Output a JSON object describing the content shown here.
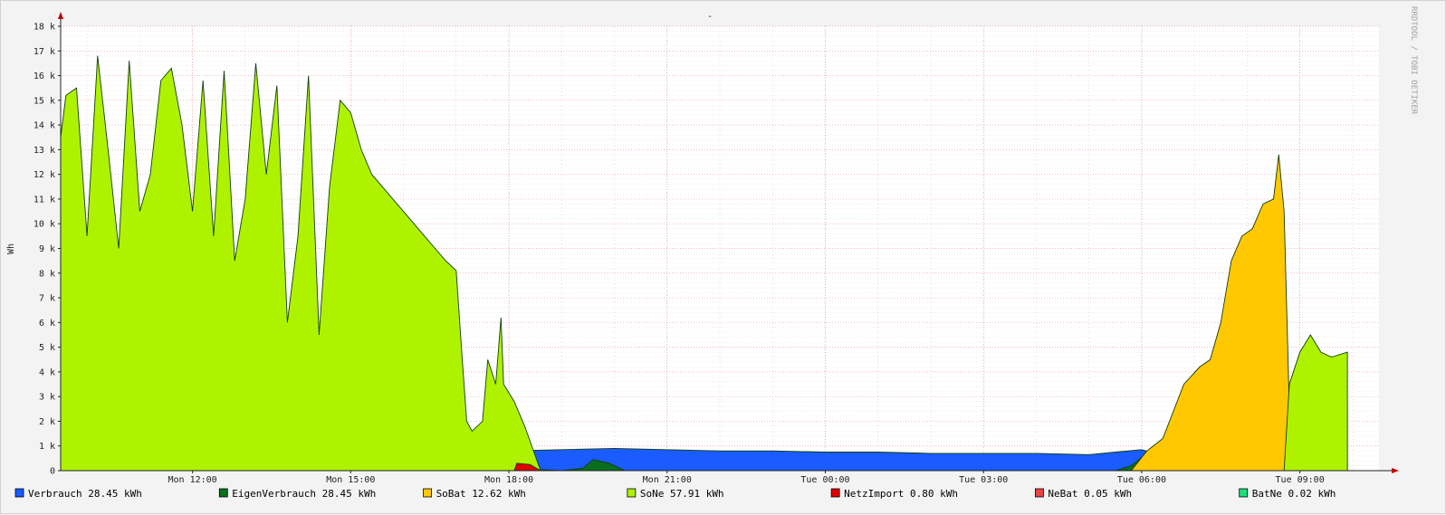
{
  "chart_data": {
    "type": "area",
    "title": "-",
    "ylabel": "Wh",
    "side_text": "RRDTOOL / TOBI OETIKER",
    "ylim": [
      0,
      18000
    ],
    "y_ticks": [
      {
        "value": 0,
        "label": "0"
      },
      {
        "value": 1000,
        "label": "1 k"
      },
      {
        "value": 2000,
        "label": "2 k"
      },
      {
        "value": 3000,
        "label": "3 k"
      },
      {
        "value": 4000,
        "label": "4 k"
      },
      {
        "value": 5000,
        "label": "5 k"
      },
      {
        "value": 6000,
        "label": "6 k"
      },
      {
        "value": 7000,
        "label": "7 k"
      },
      {
        "value": 8000,
        "label": "8 k"
      },
      {
        "value": 9000,
        "label": "9 k"
      },
      {
        "value": 10000,
        "label": "10 k"
      },
      {
        "value": 11000,
        "label": "11 k"
      },
      {
        "value": 12000,
        "label": "12 k"
      },
      {
        "value": 13000,
        "label": "13 k"
      },
      {
        "value": 14000,
        "label": "14 k"
      },
      {
        "value": 15000,
        "label": "15 k"
      },
      {
        "value": 16000,
        "label": "16 k"
      },
      {
        "value": 17000,
        "label": "17 k"
      },
      {
        "value": 18000,
        "label": "18 k"
      }
    ],
    "xlim": [
      9.5,
      34.5
    ],
    "x_ticks": [
      {
        "value": 12,
        "label": "Mon 12:00"
      },
      {
        "value": 15,
        "label": "Mon 15:00"
      },
      {
        "value": 18,
        "label": "Mon 18:00"
      },
      {
        "value": 21,
        "label": "Mon 21:00"
      },
      {
        "value": 24,
        "label": "Tue 00:00"
      },
      {
        "value": 27,
        "label": "Tue 03:00"
      },
      {
        "value": 30,
        "label": "Tue 06:00"
      },
      {
        "value": 33,
        "label": "Tue 09:00"
      }
    ],
    "grid": true,
    "legend_position": "bottom",
    "legend": [
      {
        "label": "Verbrauch 28.45 kWh",
        "color": "#1a5cff"
      },
      {
        "label": "EigenVerbrauch 28.45 kWh",
        "color": "#0a6e1e"
      },
      {
        "label": "SoBat 12.62 kWh",
        "color": "#ffc800"
      },
      {
        "label": "SoNe 57.91 kWh",
        "color": "#aef200"
      },
      {
        "label": "NetzImport 0.80 kWh",
        "color": "#e00000"
      },
      {
        "label": "NeBat 0.05 kWh",
        "color": "#e84545"
      },
      {
        "label": "BatNe 0.02 kWh",
        "color": "#19e07a"
      }
    ],
    "series": [
      {
        "name": "Verbrauch",
        "color": "#1a5cff",
        "points": [
          [
            17.6,
            0
          ],
          [
            17.65,
            700
          ],
          [
            18,
            800
          ],
          [
            19,
            850
          ],
          [
            20,
            900
          ],
          [
            21,
            850
          ],
          [
            22,
            800
          ],
          [
            23,
            800
          ],
          [
            24,
            750
          ],
          [
            25,
            750
          ],
          [
            26,
            700
          ],
          [
            27,
            700
          ],
          [
            28,
            700
          ],
          [
            29,
            650
          ],
          [
            29.5,
            750
          ],
          [
            30,
            850
          ],
          [
            30.25,
            700
          ]
        ]
      },
      {
        "name": "EigenVerbrauch",
        "color": "#0a6e1e",
        "points": [
          [
            9.5,
            0
          ],
          [
            9.5,
            1200
          ],
          [
            9.8,
            1700
          ],
          [
            10.2,
            1400
          ],
          [
            10.5,
            1300
          ],
          [
            11,
            1500
          ],
          [
            11.5,
            1800
          ],
          [
            12,
            1100
          ],
          [
            12.5,
            1300
          ],
          [
            13,
            1400
          ],
          [
            13.5,
            1100
          ],
          [
            14,
            900
          ],
          [
            14.5,
            1300
          ],
          [
            15,
            1800
          ],
          [
            15.5,
            1900
          ],
          [
            16,
            1800
          ],
          [
            16.5,
            1500
          ],
          [
            17,
            1200
          ],
          [
            17.3,
            1000
          ],
          [
            17.6,
            800
          ],
          [
            18,
            200
          ],
          [
            18.5,
            50
          ],
          [
            19,
            0
          ],
          [
            19.4,
            100
          ],
          [
            19.6,
            450
          ],
          [
            19.9,
            300
          ],
          [
            20.2,
            0
          ],
          [
            29.5,
            0
          ],
          [
            29.8,
            200
          ],
          [
            30.1,
            700
          ],
          [
            30.5,
            1200
          ],
          [
            30.8,
            1100
          ],
          [
            31.2,
            1300
          ],
          [
            31.8,
            1400
          ],
          [
            32.3,
            1600
          ],
          [
            32.8,
            2000
          ],
          [
            33.2,
            2200
          ],
          [
            33.6,
            2700
          ],
          [
            33.9,
            2800
          ],
          [
            33.9,
            0
          ]
        ]
      },
      {
        "name": "SoBat",
        "color": "#ffc800",
        "points": [
          [
            17.6,
            0
          ],
          [
            17.6,
            600
          ],
          [
            17.8,
            200
          ],
          [
            18,
            0
          ],
          [
            29.8,
            0
          ],
          [
            30.1,
            800
          ],
          [
            30.4,
            1300
          ],
          [
            30.8,
            3500
          ],
          [
            31.1,
            4200
          ],
          [
            31.3,
            4500
          ],
          [
            31.5,
            6000
          ],
          [
            31.7,
            8500
          ],
          [
            31.9,
            9500
          ],
          [
            32.1,
            9800
          ],
          [
            32.3,
            10800
          ],
          [
            32.5,
            11000
          ],
          [
            32.6,
            12800
          ],
          [
            32.7,
            10500
          ],
          [
            32.8,
            2500
          ],
          [
            33.2,
            1500
          ],
          [
            33.9,
            0
          ]
        ]
      },
      {
        "name": "SoNe",
        "color": "#aef200",
        "points": [
          [
            9.5,
            0
          ],
          [
            9.5,
            13500
          ],
          [
            9.6,
            15200
          ],
          [
            9.8,
            15500
          ],
          [
            10,
            9500
          ],
          [
            10.2,
            16800
          ],
          [
            10.4,
            13000
          ],
          [
            10.6,
            9000
          ],
          [
            10.8,
            16600
          ],
          [
            11,
            10500
          ],
          [
            11.2,
            12000
          ],
          [
            11.4,
            15800
          ],
          [
            11.6,
            16300
          ],
          [
            11.8,
            14000
          ],
          [
            12,
            10500
          ],
          [
            12.2,
            15800
          ],
          [
            12.4,
            9500
          ],
          [
            12.6,
            16200
          ],
          [
            12.8,
            8500
          ],
          [
            13,
            11000
          ],
          [
            13.2,
            16500
          ],
          [
            13.4,
            12000
          ],
          [
            13.6,
            15600
          ],
          [
            13.8,
            6000
          ],
          [
            14,
            9500
          ],
          [
            14.2,
            16000
          ],
          [
            14.4,
            5500
          ],
          [
            14.6,
            11500
          ],
          [
            14.8,
            15000
          ],
          [
            15,
            14500
          ],
          [
            15.2,
            13000
          ],
          [
            15.4,
            12000
          ],
          [
            15.6,
            11500
          ],
          [
            15.8,
            11000
          ],
          [
            16,
            10500
          ],
          [
            16.2,
            10000
          ],
          [
            16.4,
            9500
          ],
          [
            16.6,
            9000
          ],
          [
            16.8,
            8500
          ],
          [
            17,
            8100
          ],
          [
            17.1,
            5000
          ],
          [
            17.2,
            2000
          ],
          [
            17.3,
            1600
          ],
          [
            17.5,
            2000
          ],
          [
            17.6,
            4500
          ],
          [
            17.75,
            3500
          ],
          [
            17.85,
            6200
          ],
          [
            17.9,
            3500
          ],
          [
            18.1,
            2800
          ],
          [
            18.3,
            1800
          ],
          [
            18.5,
            600
          ],
          [
            18.6,
            0
          ],
          [
            32.7,
            0
          ],
          [
            32.8,
            3500
          ],
          [
            33,
            4800
          ],
          [
            33.2,
            5500
          ],
          [
            33.4,
            4800
          ],
          [
            33.6,
            4600
          ],
          [
            33.9,
            4800
          ],
          [
            33.9,
            0
          ]
        ]
      },
      {
        "name": "NetzImport",
        "color": "#e00000",
        "points": [
          [
            18.1,
            0
          ],
          [
            18.15,
            300
          ],
          [
            18.4,
            250
          ],
          [
            18.6,
            0
          ]
        ]
      },
      {
        "name": "NeBat",
        "color": "#e84545",
        "points": []
      },
      {
        "name": "BatNe",
        "color": "#19e07a",
        "points": []
      }
    ]
  }
}
